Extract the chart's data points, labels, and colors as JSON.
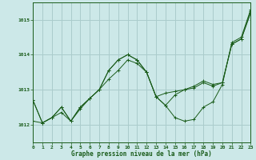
{
  "title": "Graphe pression niveau de la mer (hPa)",
  "background_color": "#cce8e8",
  "grid_color": "#aacccc",
  "line_color": "#1a5c1a",
  "xlim": [
    0,
    23
  ],
  "ylim": [
    1011.5,
    1015.5
  ],
  "yticks": [
    1012,
    1013,
    1014,
    1015
  ],
  "xticks": [
    0,
    1,
    2,
    3,
    4,
    5,
    6,
    7,
    8,
    9,
    10,
    11,
    12,
    13,
    14,
    15,
    16,
    17,
    18,
    19,
    20,
    21,
    22,
    23
  ],
  "series": [
    [
      1012.7,
      1012.05,
      1012.2,
      1012.5,
      1012.1,
      1012.5,
      1012.75,
      1013.0,
      1013.55,
      1013.85,
      1014.0,
      1013.85,
      1013.5,
      1012.8,
      1012.55,
      1012.2,
      1012.1,
      1012.15,
      1012.5,
      1012.65,
      1013.15,
      1014.35,
      1014.5,
      1015.3
    ],
    [
      1012.7,
      1012.05,
      1012.2,
      1012.5,
      1012.1,
      1012.5,
      1012.75,
      1013.0,
      1013.55,
      1013.85,
      1014.0,
      1013.85,
      1013.5,
      1012.8,
      1012.55,
      1012.85,
      1013.0,
      1013.1,
      1013.25,
      1013.15,
      1013.2,
      1014.3,
      1014.45,
      1015.25
    ],
    [
      1012.1,
      1012.05,
      1012.2,
      1012.35,
      1012.1,
      1012.45,
      1012.75,
      1013.0,
      1013.3,
      1013.55,
      1013.85,
      1013.75,
      1013.5,
      1012.8,
      1012.9,
      1012.95,
      1013.0,
      1013.05,
      1013.2,
      1013.1,
      1013.2,
      1014.3,
      1014.45,
      1015.2
    ]
  ]
}
